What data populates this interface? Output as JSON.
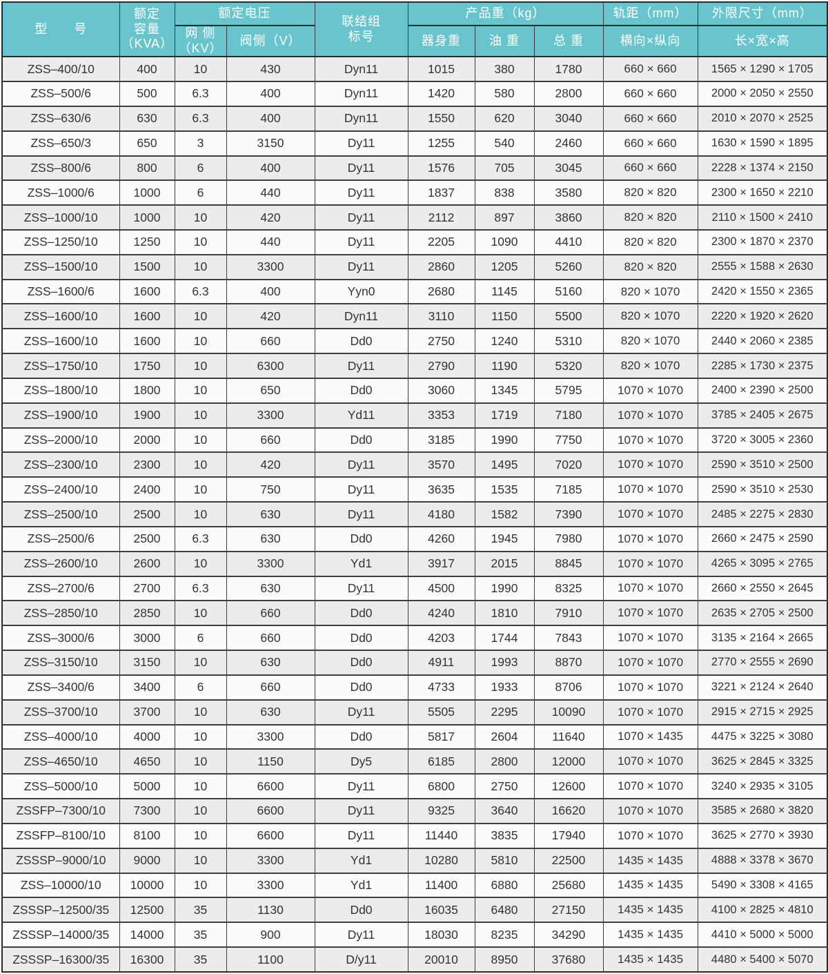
{
  "colors": {
    "header_bg": "#69c5cd",
    "header_text": "#ffffff",
    "row_odd_bg": "#ececec",
    "row_even_bg": "#fcfcfc",
    "border": "#3e3e3e",
    "body_text": "#333333"
  },
  "table": {
    "header": {
      "model": "型　　号",
      "capacity": "额定\n容量\n（KVA）",
      "voltage_group": "额定电压",
      "grid_side": "网 侧\n（KV）",
      "valve_side": "阀侧（V）",
      "connection": "联结组\n标号",
      "weight_group": "产品重（kg）",
      "body_weight": "器身重",
      "oil_weight": "油 重",
      "total_weight": "总 重",
      "rail_gauge_group": "轨距（mm）",
      "rail_gauge": "横向×纵向",
      "dimensions_group": "外限尺寸（mm）",
      "dimensions": "长×宽×高"
    },
    "rows": [
      [
        "ZSS–400/10",
        "400",
        "10",
        "430",
        "Dyn11",
        "1015",
        "380",
        "1780",
        "660 × 660",
        "1565 × 1290 × 1705"
      ],
      [
        "ZSS–500/6",
        "500",
        "6.3",
        "400",
        "Dyn11",
        "1420",
        "580",
        "2800",
        "660 × 660",
        "2000 × 2050 × 2550"
      ],
      [
        "ZSS–630/6",
        "630",
        "6.3",
        "400",
        "Dyn11",
        "1550",
        "620",
        "3040",
        "660 × 660",
        "2010 × 2070 × 2525"
      ],
      [
        "ZSS–650/3",
        "650",
        "3",
        "3150",
        "Dy11",
        "1255",
        "540",
        "2460",
        "660 × 660",
        "1630 × 1590 × 1895"
      ],
      [
        "ZSS–800/6",
        "800",
        "6",
        "400",
        "Dy11",
        "1576",
        "705",
        "3045",
        "660 × 660",
        "2228 × 1374 × 2150"
      ],
      [
        "ZSS–1000/6",
        "1000",
        "6",
        "440",
        "Dy11",
        "1837",
        "838",
        "3580",
        "820 × 820",
        "2300 × 1650 × 2210"
      ],
      [
        "ZSS–1000/10",
        "1000",
        "10",
        "420",
        "Dy11",
        "2112",
        "897",
        "3860",
        "820 × 820",
        "2110 × 1500 × 2410"
      ],
      [
        "ZSS–1250/10",
        "1250",
        "10",
        "440",
        "Dy11",
        "2205",
        "1090",
        "4410",
        "820 × 820",
        "2300 × 1870 × 2370"
      ],
      [
        "ZSS–1500/10",
        "1500",
        "10",
        "3300",
        "Dy11",
        "2860",
        "1205",
        "5260",
        "820 × 820",
        "2555 × 1588 × 2630"
      ],
      [
        "ZSS–1600/6",
        "1600",
        "6.3",
        "400",
        "Yyn0",
        "2680",
        "1145",
        "5160",
        "820 × 1070",
        "2420 × 1550 × 2365"
      ],
      [
        "ZSS–1600/10",
        "1600",
        "10",
        "420",
        "Dyn11",
        "3110",
        "1150",
        "5500",
        "820 × 1070",
        "2220 × 1920 × 2620"
      ],
      [
        "ZSS–1600/10",
        "1600",
        "10",
        "660",
        "Dd0",
        "2750",
        "1240",
        "5310",
        "820 × 1070",
        "2440 × 2060 × 2385"
      ],
      [
        "ZSS–1750/10",
        "1750",
        "10",
        "6300",
        "Dy11",
        "2790",
        "1190",
        "5320",
        "820 × 1070",
        "2285 × 1730 × 2375"
      ],
      [
        "ZSS–1800/10",
        "1800",
        "10",
        "650",
        "Dd0",
        "3060",
        "1345",
        "5795",
        "1070 × 1070",
        "2400 × 2390 × 2500"
      ],
      [
        "ZSS–1900/10",
        "1900",
        "10",
        "3300",
        "Yd11",
        "3353",
        "1719",
        "7180",
        "1070 × 1070",
        "3785 × 2405 × 2675"
      ],
      [
        "ZSS–2000/10",
        "2000",
        "10",
        "660",
        "Dd0",
        "3185",
        "1990",
        "7750",
        "1070 × 1070",
        "3720 × 3005 × 2360"
      ],
      [
        "ZSS–2300/10",
        "2300",
        "10",
        "420",
        "Dy11",
        "3570",
        "1495",
        "7020",
        "1070 × 1070",
        "2590 × 3510 × 2500"
      ],
      [
        "ZSS–2400/10",
        "2400",
        "10",
        "750",
        "Dy11",
        "3635",
        "1535",
        "7185",
        "1070 × 1070",
        "2590 × 3510 × 2530"
      ],
      [
        "ZSS–2500/10",
        "2500",
        "10",
        "630",
        "Dy11",
        "4180",
        "1582",
        "7390",
        "1070 × 1070",
        "2485 × 2275 × 2830"
      ],
      [
        "ZSS–2500/6",
        "2500",
        "6.3",
        "630",
        "Dd0",
        "4260",
        "1945",
        "7980",
        "1070 × 1070",
        "2660 × 2475 × 2590"
      ],
      [
        "ZSS–2600/10",
        "2600",
        "10",
        "3300",
        "Yd1",
        "3917",
        "2015",
        "8845",
        "1070 × 1070",
        "4265 × 3095 × 2765"
      ],
      [
        "ZSS–2700/6",
        "2700",
        "6.3",
        "630",
        "Dy11",
        "4500",
        "1990",
        "8325",
        "1070 × 1070",
        "2660 × 2550 × 2645"
      ],
      [
        "ZSS–2850/10",
        "2850",
        "10",
        "660",
        "Dd0",
        "4240",
        "1810",
        "7910",
        "1070 × 1070",
        "2635 × 2705 × 2500"
      ],
      [
        "ZSS–3000/6",
        "3000",
        "6",
        "660",
        "Dd0",
        "4203",
        "1744",
        "7843",
        "1070 × 1070",
        "3135 × 2164 × 2665"
      ],
      [
        "ZSS–3150/10",
        "3150",
        "10",
        "630",
        "Dd0",
        "4911",
        "1993",
        "8870",
        "1070 × 1070",
        "2770 × 2555 × 2690"
      ],
      [
        "ZSS–3400/6",
        "3400",
        "6",
        "660",
        "Dd0",
        "4733",
        "1933",
        "8706",
        "1070 × 1070",
        "3221 × 2124 × 2640"
      ],
      [
        "ZSS–3700/10",
        "3700",
        "10",
        "630",
        "Dy11",
        "5505",
        "2295",
        "10090",
        "1070 × 1070",
        "2915 × 2715 × 2925"
      ],
      [
        "ZSS–4000/10",
        "4000",
        "10",
        "3300",
        "Dd0",
        "5817",
        "2604",
        "11640",
        "1070 × 1435",
        "4475 × 3225 × 3080"
      ],
      [
        "ZSS–4650/10",
        "4650",
        "10",
        "1150",
        "Dy5",
        "6185",
        "2800",
        "12000",
        "1070 × 1070",
        "3625 × 2845 × 3325"
      ],
      [
        "ZSS–5000/10",
        "5000",
        "10",
        "6600",
        "Dy11",
        "6800",
        "2750",
        "12600",
        "1070 × 1070",
        "3240 × 2935 × 3105"
      ],
      [
        "ZSSFP–7300/10",
        "7300",
        "10",
        "6600",
        "Dy11",
        "9325",
        "3640",
        "16620",
        "1070 × 1070",
        "3585 × 2680 × 3820"
      ],
      [
        "ZSSFP–8100/10",
        "8100",
        "10",
        "6600",
        "Dy11",
        "11440",
        "3835",
        "17940",
        "1070 × 1070",
        "3625 × 2770 × 3930"
      ],
      [
        "ZSSSP–9000/10",
        "9000",
        "10",
        "3300",
        "Yd1",
        "10280",
        "5810",
        "22500",
        "1435 × 1435",
        "4888 × 3378 × 3670"
      ],
      [
        "ZSS–10000/10",
        "10000",
        "10",
        "3300",
        "Yd1",
        "11400",
        "6880",
        "25680",
        "1435 × 1435",
        "5490 × 3308 × 4165"
      ],
      [
        "ZSSSP–12500/35",
        "12500",
        "35",
        "1130",
        "Dd0",
        "16035",
        "6480",
        "27150",
        "1435 × 1435",
        "4100 × 2825 × 4810"
      ],
      [
        "ZSSSP–14000/35",
        "14000",
        "35",
        "900",
        "Dy11",
        "18030",
        "8235",
        "34290",
        "1435 × 1435",
        "4410 × 5000 × 5000"
      ],
      [
        "ZSSSP–16300/35",
        "16300",
        "35",
        "1100",
        "D/y11",
        "20010",
        "8950",
        "37680",
        "1435 × 1435",
        "4480 × 5400 × 5070"
      ]
    ]
  }
}
